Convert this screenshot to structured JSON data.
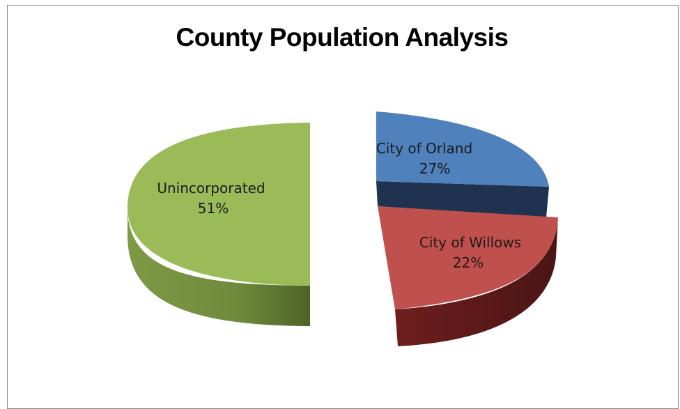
{
  "chart_data": {
    "type": "pie",
    "title": "County Population Analysis",
    "slices": [
      {
        "name": "City of Orland",
        "value": 27,
        "label": "27%",
        "color": "#4F81BD"
      },
      {
        "name": "City of Willows",
        "value": 22,
        "label": "22%",
        "color": "#C0504D"
      },
      {
        "name": "Unincorporated",
        "value": 51,
        "label": "51%",
        "color": "#9BBB59"
      }
    ],
    "style": "3d-exploded",
    "legend": "none"
  }
}
